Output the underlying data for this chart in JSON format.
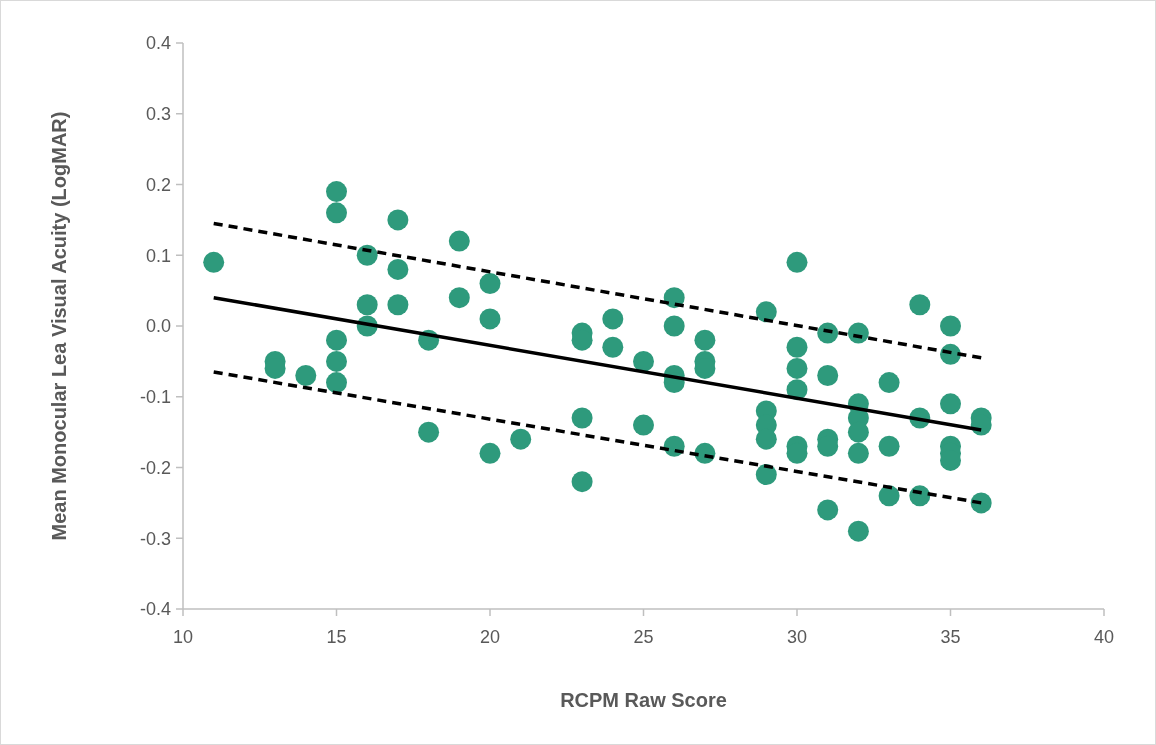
{
  "chart_data": {
    "type": "scatter",
    "xlabel": "RCPM Raw Score",
    "ylabel": "Mean Monocular Lea Visual Acuity (LogMAR)",
    "xlim": [
      10,
      40
    ],
    "ylim": [
      -0.4,
      0.4
    ],
    "xticks": [
      10,
      15,
      20,
      25,
      30,
      35,
      40
    ],
    "yticks": [
      {
        "value": -0.4,
        "label": "-0.4"
      },
      {
        "value": -0.3,
        "label": "-0.3"
      },
      {
        "value": -0.2,
        "label": "-0.2"
      },
      {
        "value": -0.1,
        "label": "-0.1"
      },
      {
        "value": 0,
        "label": "0.0"
      },
      {
        "value": 0.1,
        "label": "0.1"
      },
      {
        "value": 0.2,
        "label": "0.2"
      },
      {
        "value": 0.3,
        "label": "0.3"
      },
      {
        "value": 0.4,
        "label": "0.4"
      }
    ],
    "grid": false,
    "series": [
      {
        "color": "#2e9a7c",
        "marker": "circle",
        "x": [
          11,
          13,
          13,
          14,
          15,
          15,
          15,
          15,
          15,
          16,
          16,
          16,
          17,
          17,
          17,
          18,
          18,
          19,
          19,
          20,
          20,
          20,
          21,
          23,
          23,
          23,
          23,
          24,
          24,
          25,
          25,
          26,
          26,
          26,
          26,
          26,
          27,
          27,
          27,
          27,
          29,
          29,
          29,
          29,
          29,
          30,
          30,
          30,
          30,
          30,
          30,
          31,
          31,
          31,
          31,
          31,
          32,
          32,
          32,
          32,
          32,
          32,
          33,
          33,
          33,
          34,
          34,
          34,
          35,
          35,
          35,
          35,
          35,
          35,
          36,
          36,
          36
        ],
        "values": [
          0.09,
          -0.05,
          -0.06,
          -0.07,
          0.19,
          0.16,
          -0.02,
          -0.05,
          -0.08,
          0.1,
          0.03,
          0,
          0.15,
          0.08,
          0.03,
          -0.02,
          -0.15,
          0.12,
          0.04,
          0.06,
          0.01,
          -0.18,
          -0.16,
          -0.01,
          -0.02,
          -0.13,
          -0.22,
          0.01,
          -0.03,
          -0.05,
          -0.14,
          0.04,
          0,
          -0.07,
          -0.08,
          -0.17,
          -0.02,
          -0.05,
          -0.06,
          -0.18,
          0.02,
          -0.12,
          -0.14,
          -0.16,
          -0.21,
          0.09,
          -0.03,
          -0.06,
          -0.09,
          -0.17,
          -0.18,
          -0.01,
          -0.07,
          -0.16,
          -0.17,
          -0.26,
          -0.01,
          -0.11,
          -0.13,
          -0.15,
          -0.18,
          -0.29,
          -0.08,
          -0.17,
          -0.24,
          0.03,
          -0.13,
          -0.24,
          0,
          -0.04,
          -0.11,
          -0.17,
          -0.18,
          -0.19,
          -0.13,
          -0.14,
          -0.25
        ]
      },
      {
        "type": "line",
        "color": "#000000",
        "line_style": "solid",
        "marker": "none",
        "x": [
          11,
          36
        ],
        "values": [
          0.04,
          -0.147
        ]
      },
      {
        "type": "line",
        "color": "#000000",
        "line_style": "dashed",
        "marker": "none",
        "x": [
          11,
          36
        ],
        "values": [
          0.145,
          -0.045
        ]
      },
      {
        "type": "line",
        "color": "#000000",
        "line_style": "dashed",
        "marker": "none",
        "x": [
          11,
          36
        ],
        "values": [
          -0.065,
          -0.25
        ]
      }
    ]
  }
}
